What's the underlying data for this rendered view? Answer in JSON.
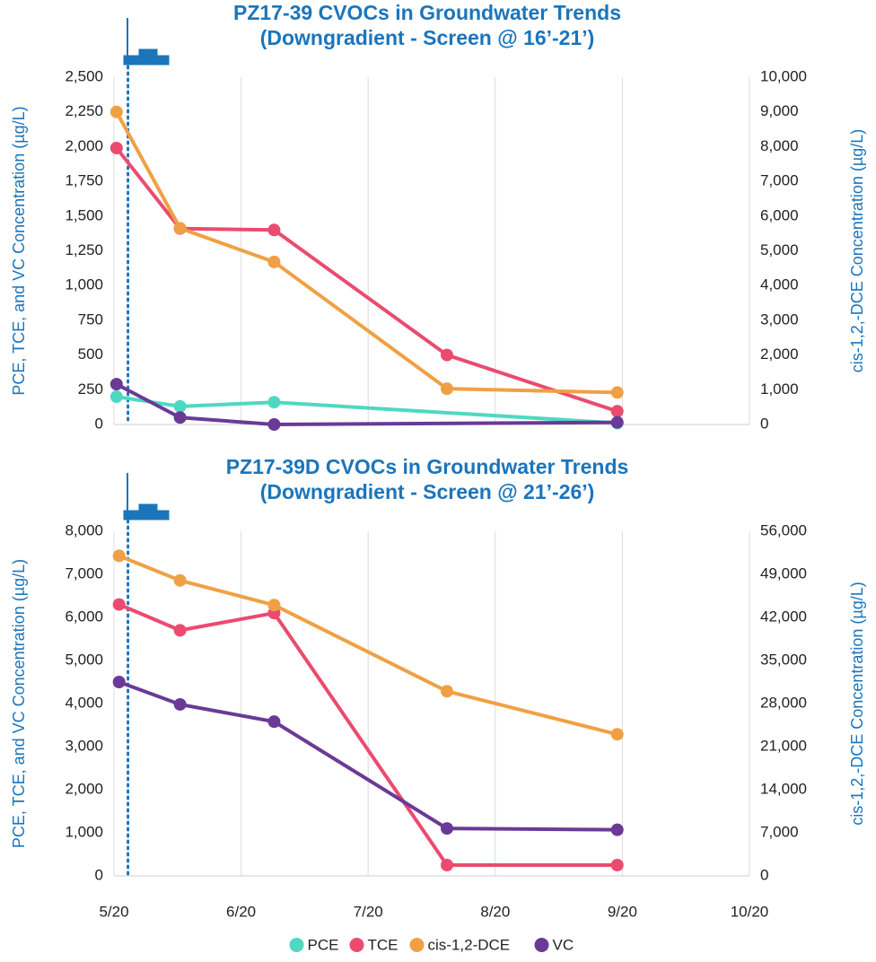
{
  "chart_data": [
    {
      "type": "line",
      "title": "PZ17-39 CVOCs in Groundwater Trends",
      "subtitle": "(Downgradient - Screen @ 16’-21’)",
      "ylabel": "PCE, TCE, and VC Concentration (µg/L)",
      "y2label": "cis-1,2,-DCE Concentration (µg/L)",
      "xlim": [
        0,
        5
      ],
      "xticks": [
        0,
        1,
        2,
        3,
        4,
        5
      ],
      "marker_x": 0.11,
      "ylim": [
        0,
        2500
      ],
      "yticks": [
        0,
        250,
        500,
        750,
        {
          "value": 1000,
          "label": "1,000"
        },
        {
          "value": 1250,
          "label": "1,250"
        },
        {
          "value": 1500,
          "label": "1,500"
        },
        {
          "value": 1750,
          "label": "1,750"
        },
        {
          "value": 2000,
          "label": "2,000"
        },
        {
          "value": 2250,
          "label": "2,250"
        },
        {
          "value": 2500,
          "label": "2,500"
        }
      ],
      "y2lim": [
        0,
        10000
      ],
      "y2ticks": [
        0,
        {
          "value": 1000,
          "label": "1,000"
        },
        {
          "value": 2000,
          "label": "2,000"
        },
        {
          "value": 3000,
          "label": "3,000"
        },
        {
          "value": 4000,
          "label": "4,000"
        },
        {
          "value": 5000,
          "label": "5,000"
        },
        {
          "value": 6000,
          "label": "6,000"
        },
        {
          "value": 7000,
          "label": "7,000"
        },
        {
          "value": 8000,
          "label": "8,000"
        },
        {
          "value": 9000,
          "label": "9,000"
        },
        {
          "value": 10000,
          "label": "10,000"
        }
      ],
      "series": [
        {
          "name": "PCE",
          "color": "#4fd8c1",
          "x": [
            0.02,
            0.52,
            1.26,
            3.96
          ],
          "values": [
            200,
            130,
            160,
            10
          ]
        },
        {
          "name": "TCE",
          "color": "#ea4b6f",
          "x": [
            0.02,
            0.52,
            1.26,
            2.62,
            3.96
          ],
          "values": [
            1990,
            1410,
            1400,
            500,
            95
          ]
        },
        {
          "name": "cis-1,2-DCE",
          "color": "#f0a044",
          "axis": "y2",
          "x": [
            0.02,
            0.52,
            1.26,
            2.62,
            3.96
          ],
          "values": [
            9000,
            5650,
            4680,
            1030,
            920
          ]
        },
        {
          "name": "VC",
          "color": "#6a3a96",
          "x": [
            0.02,
            0.52,
            1.26,
            3.96
          ],
          "values": [
            290,
            50,
            0,
            15
          ]
        }
      ]
    },
    {
      "type": "line",
      "title": "PZ17-39D CVOCs in Groundwater Trends",
      "subtitle": "(Downgradient - Screen @ 21’-26’)",
      "ylabel": "PCE, TCE, and VC Concentration (µg/L)",
      "y2label": "cis-1,2,-DCE Concentration (µg/L)",
      "xlim": [
        0,
        5
      ],
      "xticks": [
        {
          "value": 0,
          "label": "5/20"
        },
        {
          "value": 1,
          "label": "6/20"
        },
        {
          "value": 2,
          "label": "7/20"
        },
        {
          "value": 3,
          "label": "8/20"
        },
        {
          "value": 4,
          "label": "9/20"
        },
        {
          "value": 5,
          "label": "10/20"
        }
      ],
      "marker_x": 0.11,
      "ylim": [
        0,
        8000
      ],
      "yticks": [
        0,
        {
          "value": 1000,
          "label": "1,000"
        },
        {
          "value": 2000,
          "label": "2,000"
        },
        {
          "value": 3000,
          "label": "3,000"
        },
        {
          "value": 4000,
          "label": "4,000"
        },
        {
          "value": 5000,
          "label": "5,000"
        },
        {
          "value": 6000,
          "label": "6,000"
        },
        {
          "value": 7000,
          "label": "7,000"
        },
        {
          "value": 8000,
          "label": "8,000"
        }
      ],
      "y2lim": [
        0,
        56000
      ],
      "y2ticks": [
        0,
        {
          "value": 7000,
          "label": "7,000"
        },
        {
          "value": 14000,
          "label": "14,000"
        },
        {
          "value": 21000,
          "label": "21,000"
        },
        {
          "value": 28000,
          "label": "28,000"
        },
        {
          "value": 35000,
          "label": "35,000"
        },
        {
          "value": 42000,
          "label": "42,000"
        },
        {
          "value": 49000,
          "label": "49,000"
        },
        {
          "value": 56000,
          "label": "56,000"
        }
      ],
      "series": [
        {
          "name": "PCE",
          "color": "#4fd8c1",
          "x": [],
          "values": []
        },
        {
          "name": "TCE",
          "color": "#ea4b6f",
          "x": [
            0.04,
            0.52,
            1.26,
            2.62,
            3.96
          ],
          "values": [
            6300,
            5700,
            6100,
            250,
            250
          ]
        },
        {
          "name": "cis-1,2-DCE",
          "color": "#f0a044",
          "axis": "y2",
          "x": [
            0.04,
            0.52,
            1.26,
            2.62,
            3.96
          ],
          "values": [
            52000,
            48000,
            44000,
            30000,
            23000
          ]
        },
        {
          "name": "VC",
          "color": "#6a3a96",
          "x": [
            0.04,
            0.52,
            1.26,
            2.62,
            3.96
          ],
          "values": [
            4500,
            3980,
            3580,
            1100,
            1070
          ]
        }
      ]
    }
  ]
}
